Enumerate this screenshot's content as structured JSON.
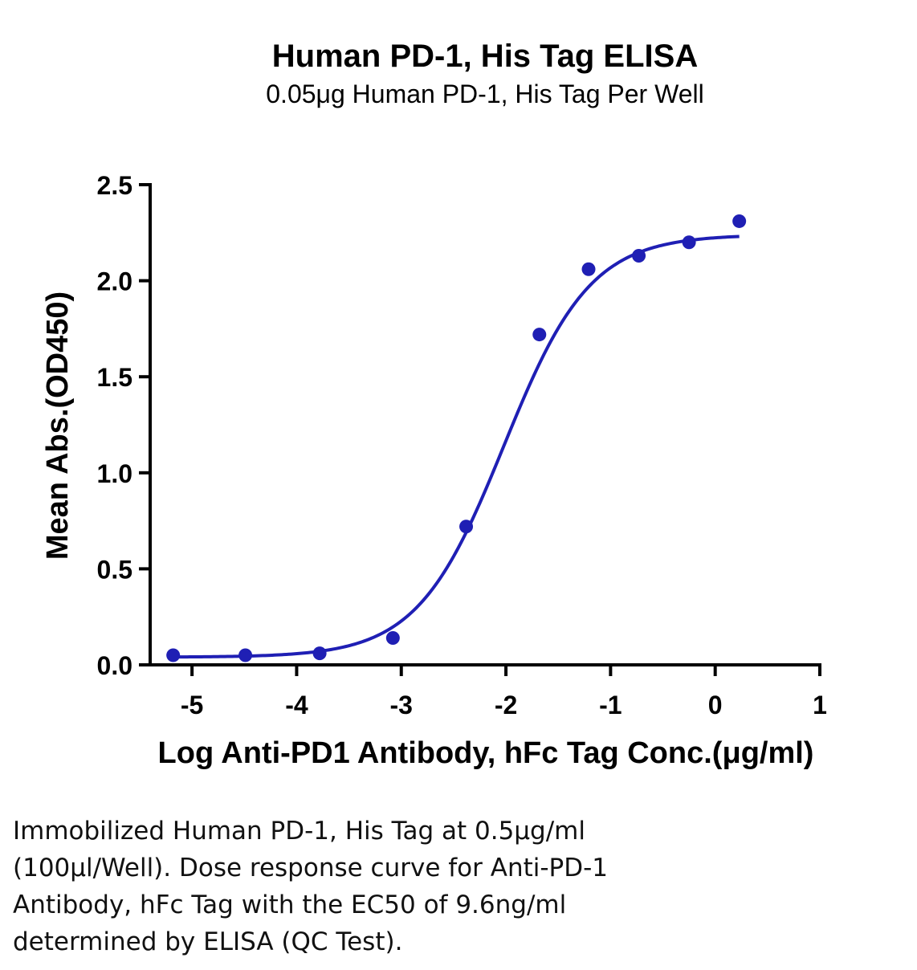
{
  "chart_data": {
    "type": "scatter",
    "title": "Human PD-1, His Tag ELISA",
    "subtitle": "0.05μg Human PD-1, His Tag Per Well",
    "xlabel": "Log Anti-PD1 Antibody, hFc Tag Conc.(μg/ml)",
    "ylabel": "Mean Abs.(OD450)",
    "xlim": [
      -5.4,
      1
    ],
    "ylim": [
      0,
      2.5
    ],
    "x_ticks": [
      -5,
      -4,
      -3,
      -2,
      -1,
      0,
      1
    ],
    "y_ticks": [
      0.0,
      0.5,
      1.0,
      1.5,
      2.0,
      2.5
    ],
    "x_tick_labels": [
      "-5",
      "-4",
      "-3",
      "-2",
      "-1",
      "0",
      "1"
    ],
    "y_tick_labels": [
      "0.0",
      "0.5",
      "1.0",
      "1.5",
      "2.0",
      "2.5"
    ],
    "grid": false,
    "color": "#1f1fb4",
    "points": {
      "x": [
        -5.18,
        -4.49,
        -3.78,
        -3.08,
        -2.38,
        -1.68,
        -1.21,
        -0.73,
        -0.25,
        0.23
      ],
      "y": [
        0.05,
        0.05,
        0.06,
        0.14,
        0.72,
        1.72,
        2.06,
        2.13,
        2.2,
        2.31
      ]
    },
    "fit_curve": {
      "model": "4PL",
      "bottom": 0.04,
      "top": 2.24,
      "log_ec50": -2.02,
      "hill_slope": 1.05,
      "x_range": [
        -5.18,
        0.23
      ]
    }
  },
  "caption": {
    "lines": [
      "Immobilized Human PD-1, His Tag at 0.5μg/ml",
      "(100μl/Well). Dose response curve for Anti-PD-1",
      "Antibody, hFc Tag with the EC50 of 9.6ng/ml",
      "determined by ELISA (QC Test)."
    ]
  }
}
